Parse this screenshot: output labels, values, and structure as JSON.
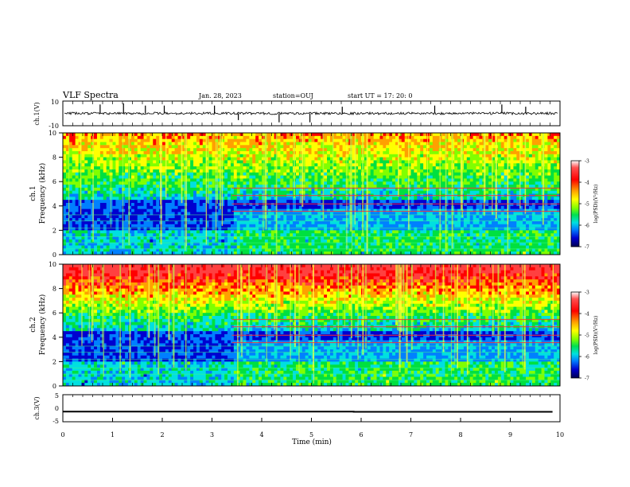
{
  "header": {
    "title": "VLF Spectra",
    "date": "Jan. 28, 2023",
    "station": "station=OUJ",
    "start": "start  UT =   17: 20: 0"
  },
  "colorbar": {
    "label": "log(PSD)(V²/Hz)",
    "ticks": [
      "-3",
      "-4",
      "-5",
      "-6",
      "-7"
    ],
    "colors": [
      "#ffffff",
      "#ff4040",
      "#ff0000",
      "#ffa000",
      "#ffff00",
      "#80ff00",
      "#00e040",
      "#00e0e0",
      "#0080ff",
      "#0000d0",
      "#000060"
    ]
  },
  "chart_data": [
    {
      "type": "line",
      "panel": "ch.1(V)",
      "ylabel": "ch.1(V)",
      "ylim": [
        -10,
        10
      ],
      "yticks": [
        "10",
        "-10"
      ],
      "xlim": [
        0,
        10
      ],
      "baseline": 0,
      "spikes": [
        {
          "t": 0.75,
          "y": 8
        },
        {
          "t": 1.22,
          "y": 9
        },
        {
          "t": 1.66,
          "y": 7
        },
        {
          "t": 2.04,
          "y": 7
        },
        {
          "t": 3.05,
          "y": 7
        },
        {
          "t": 3.53,
          "y": -6
        },
        {
          "t": 4.35,
          "y": -8
        },
        {
          "t": 4.97,
          "y": -8
        },
        {
          "t": 5.62,
          "y": 6
        },
        {
          "t": 7.48,
          "y": 7
        },
        {
          "t": 8.83,
          "y": 8
        },
        {
          "t": 9.31,
          "y": 6
        }
      ]
    },
    {
      "type": "heatmap",
      "panel": "ch.1",
      "ylabel": "ch.1\nFrequency (kHz)",
      "ylim": [
        0,
        10
      ],
      "yticks": [
        "0",
        "2",
        "4",
        "6",
        "8",
        "10"
      ],
      "xlim": [
        0,
        10
      ],
      "colorbar_range": [
        -7,
        -3
      ]
    },
    {
      "type": "heatmap",
      "panel": "ch.2",
      "ylabel": "ch.2\nFrequency (kHz)",
      "ylim": [
        0,
        10
      ],
      "yticks": [
        "0",
        "2",
        "4",
        "6",
        "8",
        "10"
      ],
      "xlim": [
        0,
        10
      ],
      "colorbar_range": [
        -7,
        -3
      ]
    },
    {
      "type": "line",
      "panel": "ch.3(V)",
      "ylabel": "ch.3(V)",
      "ylim": [
        -5,
        5
      ],
      "yticks": [
        "5",
        "0",
        "-5"
      ],
      "xlim": [
        0,
        10
      ],
      "xlabel": "Time (min)",
      "xticks": [
        "0",
        "1",
        "2",
        "3",
        "4",
        "5",
        "6",
        "7",
        "8",
        "9",
        "10"
      ],
      "x": [
        0,
        5.85,
        5.85,
        9.85
      ],
      "y": [
        -1.3,
        -1.3,
        -1.4,
        -1.4
      ]
    }
  ]
}
